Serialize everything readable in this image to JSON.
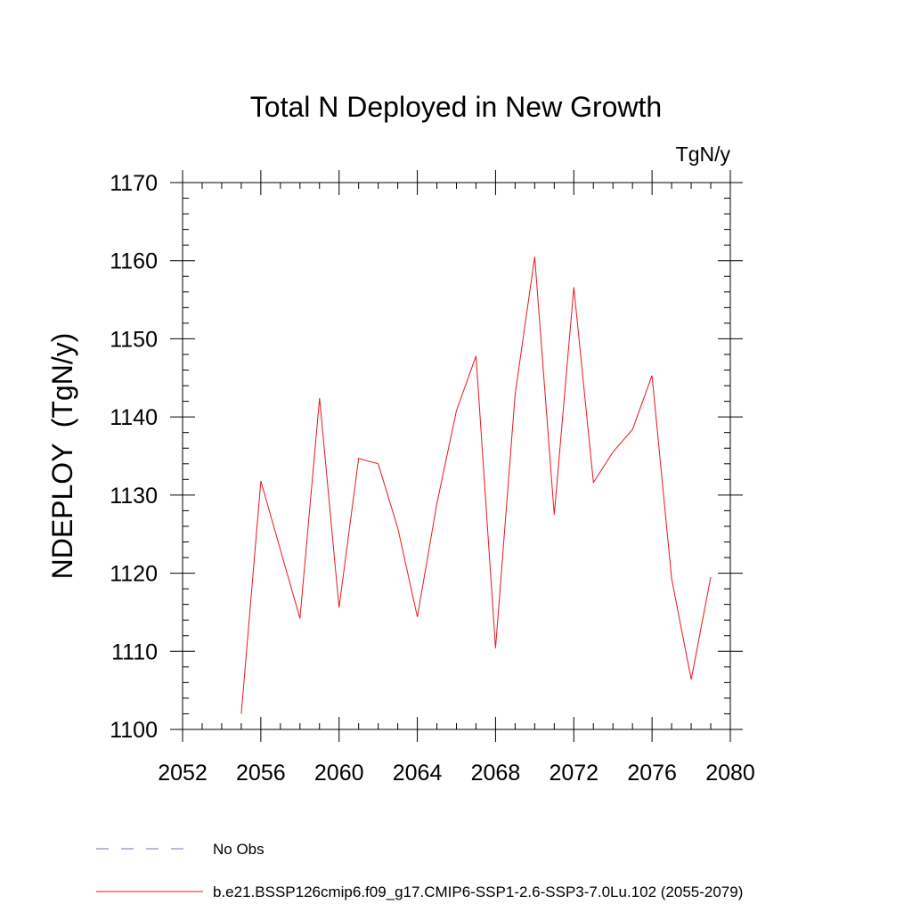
{
  "chart_data": {
    "type": "line",
    "title": "Total N Deployed in New Growth",
    "units": "TgN/y",
    "xlabel": "",
    "ylabel": "NDEPLOY  (TgN/y)",
    "xlim": [
      2052,
      2080
    ],
    "ylim": [
      1100,
      1170
    ],
    "xticks": [
      2052,
      2056,
      2060,
      2064,
      2068,
      2072,
      2076,
      2080
    ],
    "yticks": [
      1100,
      1110,
      1120,
      1130,
      1140,
      1150,
      1160,
      1170
    ],
    "grid": false,
    "legend_position": "bottom-left",
    "series": [
      {
        "name": "b.e21.BSSP126cmip6.f09_g17.CMIP6-SSP1-2.6-SSP3-7.0Lu.102 (2055-2079)",
        "color": "#e8161c",
        "style": "solid",
        "x": [
          2055,
          2056,
          2057,
          2058,
          2059,
          2060,
          2061,
          2062,
          2063,
          2064,
          2065,
          2066,
          2067,
          2068,
          2069,
          2070,
          2071,
          2072,
          2073,
          2074,
          2075,
          2076,
          2077,
          2078,
          2079
        ],
        "y": [
          1102.0,
          1131.8,
          1123.0,
          1114.2,
          1142.4,
          1115.6,
          1134.7,
          1134.0,
          1125.8,
          1114.4,
          1128.9,
          1140.8,
          1147.8,
          1110.4,
          1142.9,
          1160.5,
          1127.5,
          1156.6,
          1131.6,
          1135.5,
          1138.4,
          1145.3,
          1119.3,
          1106.4,
          1119.5
        ]
      }
    ],
    "legend": [
      {
        "label": "No Obs",
        "color": "#7a6fb0",
        "style": "dashed"
      },
      {
        "label": "b.e21.BSSP126cmip6.f09_g17.CMIP6-SSP1-2.6-SSP3-7.0Lu.102 (2055-2079)",
        "color": "#e8161c",
        "style": "solid"
      }
    ]
  }
}
